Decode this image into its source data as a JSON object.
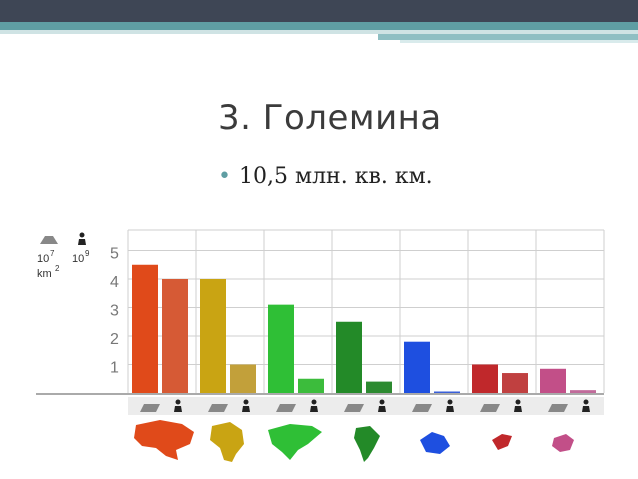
{
  "slide": {
    "title": "3. Големина",
    "bullet": "10,5 млн. кв. км."
  },
  "chart_data": {
    "type": "bar",
    "unit_area_base": "10",
    "unit_area_exp": "7",
    "unit_area_suffix": "km",
    "unit_area_suffix_exp": "2",
    "unit_pop_base": "10",
    "unit_pop_exp": "9",
    "yticks": [
      "1",
      "2",
      "3",
      "4",
      "5"
    ],
    "ylim": [
      0,
      5.5
    ],
    "grid": true,
    "categories": [
      "Asia",
      "Africa",
      "North America",
      "South America",
      "Antarctica",
      "Europe",
      "Australia"
    ],
    "series": [
      {
        "values": [
          4.5,
          4.0,
          3.1,
          2.5,
          1.8,
          1.0,
          0.85
        ]
      },
      {
        "values": [
          4.0,
          1.0,
          0.5,
          0.4,
          0.0,
          0.7,
          0.1
        ]
      }
    ],
    "colors_area": [
      "#e04a1a",
      "#c9a413",
      "#2fbf36",
      "#238a28",
      "#1e4fe0",
      "#c0282b",
      "#c24f88"
    ],
    "colors_pop": [
      "#d65a35",
      "#c2a03a",
      "#3cbc3c",
      "#2c8a30",
      "#3a5fd8",
      "#c04040",
      "#c06a9a"
    ]
  }
}
